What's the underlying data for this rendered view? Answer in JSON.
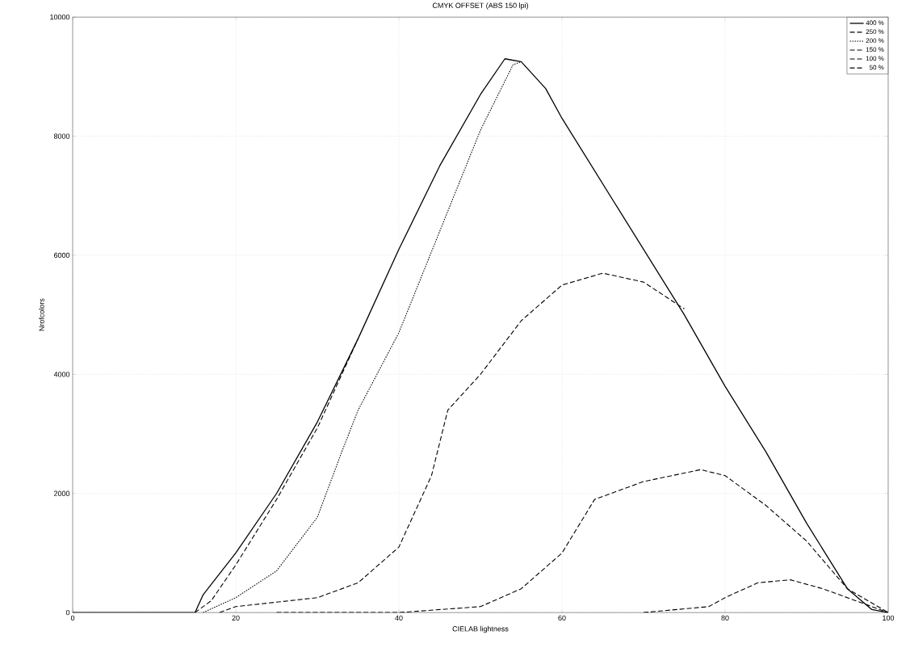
{
  "chart_data": {
    "type": "line",
    "title": "CMYK OFFSET (ABS 150 lpi)",
    "xlabel": "CIELAB lightness",
    "ylabel": "Nrofcolors",
    "xlim": [
      0,
      100
    ],
    "ylim": [
      0,
      10000
    ],
    "xticks": [
      0,
      20,
      40,
      60,
      80,
      100
    ],
    "yticks": [
      0,
      2000,
      4000,
      6000,
      8000,
      10000
    ],
    "grid": true,
    "legend": "top right",
    "marker": "none",
    "series": [
      {
        "name": "400 %",
        "color": "#000000",
        "line_style": "solid",
        "x": [
          0,
          15,
          16,
          20,
          25,
          30,
          35,
          40,
          45,
          50,
          53,
          55,
          58,
          60,
          65,
          70,
          75,
          80,
          85,
          90,
          95,
          98,
          100
        ],
        "values": [
          0,
          0,
          300,
          1000,
          2000,
          3200,
          4600,
          6100,
          7500,
          8700,
          9300,
          9250,
          8800,
          8300,
          7200,
          6100,
          5000,
          3800,
          2700,
          1500,
          400,
          50,
          0
        ]
      },
      {
        "name": "250 %",
        "color": "#000000",
        "line_style": "dashed",
        "x": [
          15,
          17,
          20,
          25,
          30,
          33,
          35
        ],
        "values": [
          0,
          200,
          800,
          1900,
          3100,
          4000,
          4600
        ]
      },
      {
        "name": "200 %",
        "color": "#000000",
        "line_style": "dotted",
        "x": [
          16,
          20,
          25,
          30,
          33,
          35,
          40,
          45,
          50,
          54,
          55
        ],
        "values": [
          0,
          250,
          700,
          1600,
          2700,
          3400,
          4700,
          6400,
          8100,
          9200,
          9250
        ]
      },
      {
        "name": "150 %",
        "color": "#000000",
        "line_style": "dashed",
        "x": [
          18,
          20,
          30,
          35,
          40,
          44,
          46,
          50,
          55,
          60,
          65,
          70,
          75
        ],
        "values": [
          0,
          100,
          250,
          500,
          1100,
          2300,
          3400,
          4000,
          4900,
          5500,
          5700,
          5550,
          5100
        ]
      },
      {
        "name": "100 %",
        "color": "#000000",
        "line_style": "dashed",
        "x": [
          25,
          40,
          50,
          55,
          60,
          64,
          70,
          77,
          80,
          85,
          90,
          95,
          100
        ],
        "values": [
          0,
          0,
          100,
          400,
          1000,
          1900,
          2200,
          2400,
          2300,
          1800,
          1200,
          400,
          0
        ]
      },
      {
        "name": "50 %",
        "color": "#000000",
        "line_style": "dashed",
        "x": [
          70,
          78,
          80,
          84,
          88,
          92,
          96,
          100
        ],
        "values": [
          0,
          100,
          250,
          500,
          550,
          400,
          200,
          0
        ]
      }
    ]
  }
}
